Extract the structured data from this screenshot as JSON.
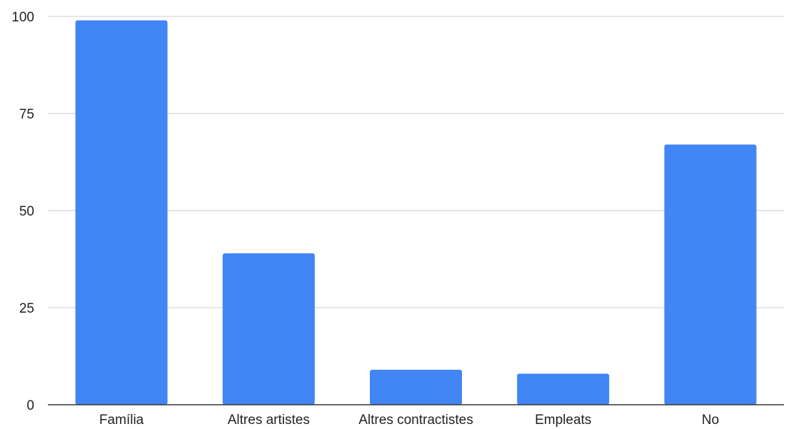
{
  "chart_data": {
    "type": "bar",
    "categories": [
      "Família",
      "Altres artistes",
      "Altres contractistes",
      "Empleats",
      "No"
    ],
    "values": [
      99,
      39,
      9,
      8,
      67
    ],
    "ylim": [
      0,
      100
    ],
    "yticks": [
      0,
      25,
      50,
      75,
      100
    ],
    "grid": true,
    "legend": "none",
    "colors": {
      "bar": "#4285f4",
      "grid": "#cccccc",
      "axis": "#333333",
      "text": "#222222"
    }
  }
}
